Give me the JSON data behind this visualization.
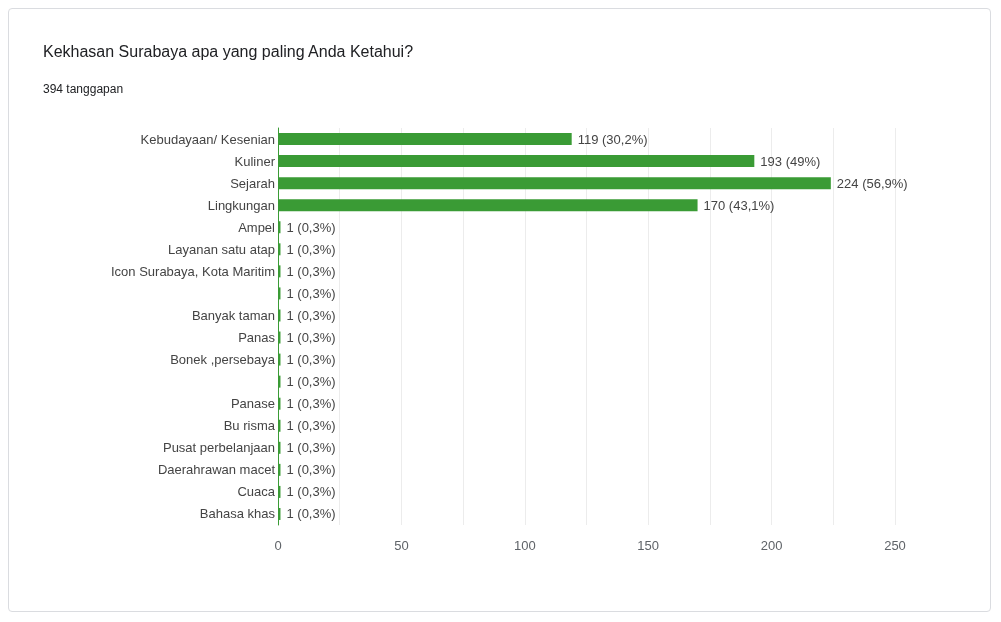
{
  "chart_data": {
    "type": "bar",
    "orientation": "horizontal",
    "title": "Kekhasan Surabaya apa yang paling Anda Ketahui?",
    "subtitle": "394 tanggapan",
    "categories": [
      "Kebudayaan/ Kesenian",
      "Kuliner",
      "Sejarah",
      "Lingkungan",
      "Ampel",
      "Layanan satu atap",
      "Icon Surabaya, Kota Maritim",
      null,
      "Banyak taman",
      "Panas",
      "Bonek ,persebaya",
      null,
      "Panase",
      "Bu risma",
      "Pusat perbelanjaan",
      "Daerahrawan macet",
      "Cuaca",
      "Bahasa khas"
    ],
    "values": [
      119,
      193,
      224,
      170,
      1,
      1,
      1,
      1,
      1,
      1,
      1,
      1,
      1,
      1,
      1,
      1,
      1,
      1
    ],
    "value_labels": [
      "119 (30,2%)",
      "193 (49%)",
      "224 (56,9%)",
      "170 (43,1%)",
      "1 (0,3%)",
      "1 (0,3%)",
      "1 (0,3%)",
      "1 (0,3%)",
      "1 (0,3%)",
      "1 (0,3%)",
      "1 (0,3%)",
      "1 (0,3%)",
      "1 (0,3%)",
      "1 (0,3%)",
      "1 (0,3%)",
      "1 (0,3%)",
      "1 (0,3%)",
      "1 (0,3%)"
    ],
    "color": "#3a9b35",
    "xlim": [
      0,
      250
    ],
    "xticks": [
      0,
      {
        "value": 25,
        "label": null
      },
      50,
      {
        "value": 75,
        "label": null
      },
      100,
      {
        "value": 125,
        "label": null
      },
      150,
      {
        "value": 175,
        "label": null
      },
      200,
      {
        "value": 225,
        "label": null
      },
      250
    ],
    "grid": "x"
  }
}
